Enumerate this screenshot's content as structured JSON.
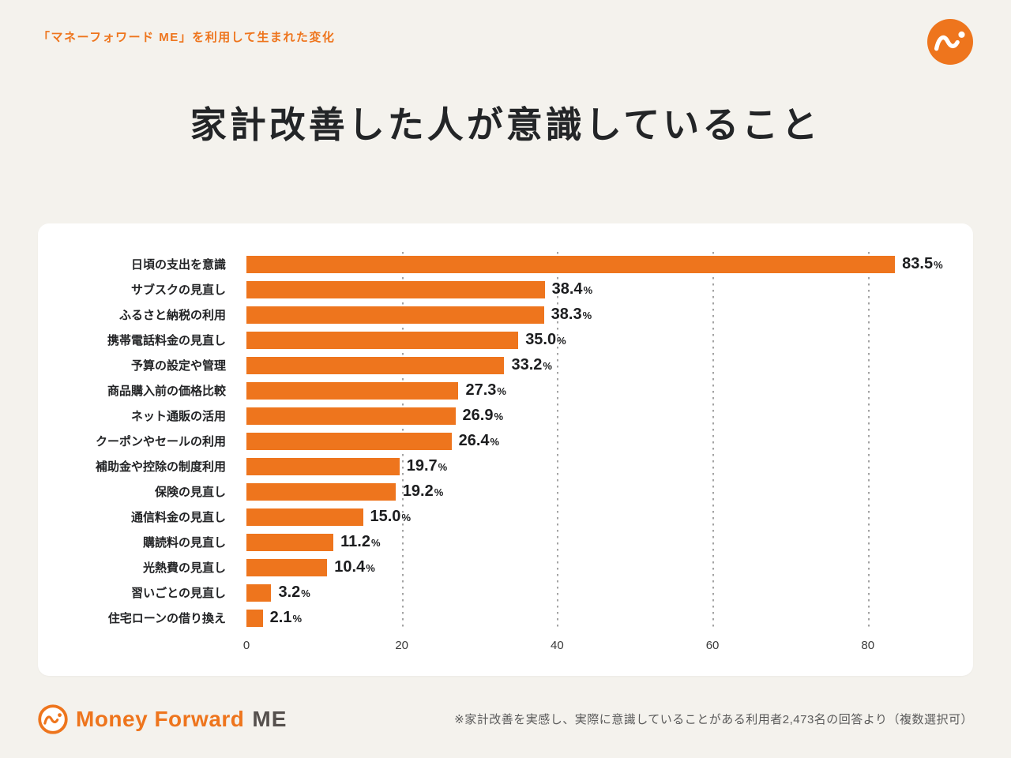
{
  "header": {
    "subtitle": "「マネーフォワード ME」を利用して生まれた変化",
    "title": "家計改善した人が意識していること"
  },
  "chart_data": {
    "type": "bar",
    "orientation": "horizontal",
    "title": "家計改善した人が意識していること",
    "unit": "%",
    "categories": [
      "日頃の支出を意識",
      "サブスクの見直し",
      "ふるさと納税の利用",
      "携帯電話料金の見直し",
      "予算の設定や管理",
      "商品購入前の価格比較",
      "ネット通販の活用",
      "クーポンやセールの利用",
      "補助金や控除の制度利用",
      "保険の見直し",
      "通信料金の見直し",
      "購読料の見直し",
      "光熱費の見直し",
      "習いごとの見直し",
      "住宅ローンの借り換え"
    ],
    "values": [
      83.5,
      38.4,
      38.3,
      35.0,
      33.2,
      27.3,
      26.9,
      26.4,
      19.7,
      19.2,
      15.0,
      11.2,
      10.4,
      3.2,
      2.1
    ],
    "value_labels": [
      "83.5",
      "38.4",
      "38.3",
      "35.0",
      "33.2",
      "27.3",
      "26.9",
      "26.4",
      "19.7",
      "19.2",
      "15.0",
      "11.2",
      "10.4",
      "3.2",
      "2.1"
    ],
    "xticks": [
      0,
      20,
      40,
      60,
      80
    ],
    "xlim": [
      0,
      90.5
    ],
    "bar_color": "#ee751d",
    "grid": "dotted-vertical",
    "legend": "none"
  },
  "footer": {
    "brand_main": "Money Forward",
    "brand_suffix": "ME",
    "note": "※家計改善を実感し、実際に意識していることがある利用者2,473名の回答より（複数選択可）"
  },
  "colors": {
    "accent": "#ee751d",
    "background": "#f4f2ed",
    "card": "#ffffff",
    "title_text": "#232527",
    "note_text": "#5a5a5a"
  }
}
